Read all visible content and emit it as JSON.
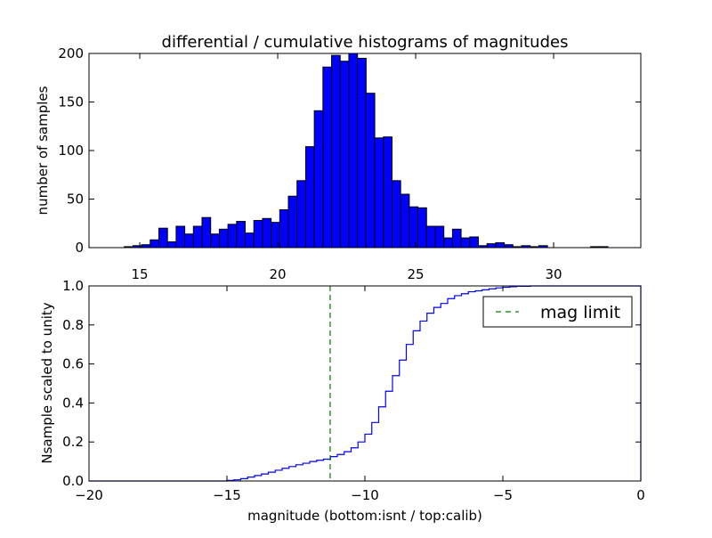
{
  "chart_data": [
    {
      "type": "bar",
      "subtype": "histogram",
      "title": "differential / cumulative histograms of magnitudes",
      "xlabel": "",
      "ylabel": "number of samples",
      "xlim": [
        13.16,
        33.16
      ],
      "ylim": [
        0,
        200
      ],
      "xticks": [
        "15",
        "20",
        "25",
        "30"
      ],
      "xtick_values": [
        15,
        20,
        25,
        30
      ],
      "yticks": [
        "0",
        "50",
        "100",
        "150",
        "200"
      ],
      "ytick_values": [
        0,
        50,
        100,
        150,
        200
      ],
      "bin_start": 14.44,
      "bin_width": 0.313,
      "values": [
        1,
        2,
        3,
        8,
        20,
        6,
        22,
        14,
        22,
        31,
        14,
        19,
        24,
        27,
        15,
        28,
        30,
        26,
        39,
        53,
        69,
        104,
        141,
        186,
        198,
        192,
        200,
        195,
        159,
        113,
        114,
        69,
        55,
        42,
        41,
        22,
        22,
        10,
        19,
        10,
        11,
        2,
        4,
        5,
        3,
        1,
        2,
        1,
        2,
        0,
        0,
        0,
        0,
        0,
        1,
        1
      ],
      "color": "#0000ff",
      "grid": false
    },
    {
      "type": "line",
      "subtype": "cumulative-step",
      "xlabel": "magnitude (bottom:isnt / top:calib)",
      "ylabel": "Nsample scaled to unity",
      "xlim": [
        -20,
        0
      ],
      "ylim": [
        0,
        1
      ],
      "xticks": [
        "−20",
        "−15",
        "−10",
        "−5",
        "0"
      ],
      "xtick_values": [
        -20,
        -15,
        -10,
        -5,
        0
      ],
      "yticks": [
        "0.0",
        "0.2",
        "0.4",
        "0.6",
        "0.8",
        "1.0"
      ],
      "ytick_values": [
        0,
        0.2,
        0.4,
        0.6,
        0.8,
        1.0
      ],
      "x": [
        -15.0,
        -14.75,
        -14.5,
        -14.25,
        -14.0,
        -13.75,
        -13.5,
        -13.25,
        -13.0,
        -12.75,
        -12.5,
        -12.25,
        -12.0,
        -11.75,
        -11.5,
        -11.25,
        -11.0,
        -10.75,
        -10.5,
        -10.25,
        -10.0,
        -9.75,
        -9.5,
        -9.25,
        -9.0,
        -8.75,
        -8.5,
        -8.25,
        -8.0,
        -7.75,
        -7.5,
        -7.25,
        -7.0,
        -6.75,
        -6.5,
        -6.25,
        -6.0,
        -5.75,
        -5.5,
        -5.25,
        -5.0,
        -4.75,
        -4.5,
        -4.0
      ],
      "y": [
        0.003,
        0.006,
        0.012,
        0.02,
        0.028,
        0.036,
        0.045,
        0.055,
        0.065,
        0.074,
        0.083,
        0.091,
        0.1,
        0.106,
        0.112,
        0.125,
        0.136,
        0.15,
        0.17,
        0.2,
        0.24,
        0.3,
        0.38,
        0.46,
        0.54,
        0.62,
        0.7,
        0.77,
        0.82,
        0.86,
        0.89,
        0.91,
        0.935,
        0.95,
        0.96,
        0.97,
        0.975,
        0.98,
        0.985,
        0.99,
        0.993,
        0.996,
        0.998,
        1.0
      ],
      "series_color": "#0000ff",
      "mag_limit": -11.26,
      "mag_limit_color": "#007f00",
      "legend": {
        "entries": [
          "mag limit"
        ],
        "placement": "top-right"
      },
      "grid": false
    }
  ]
}
